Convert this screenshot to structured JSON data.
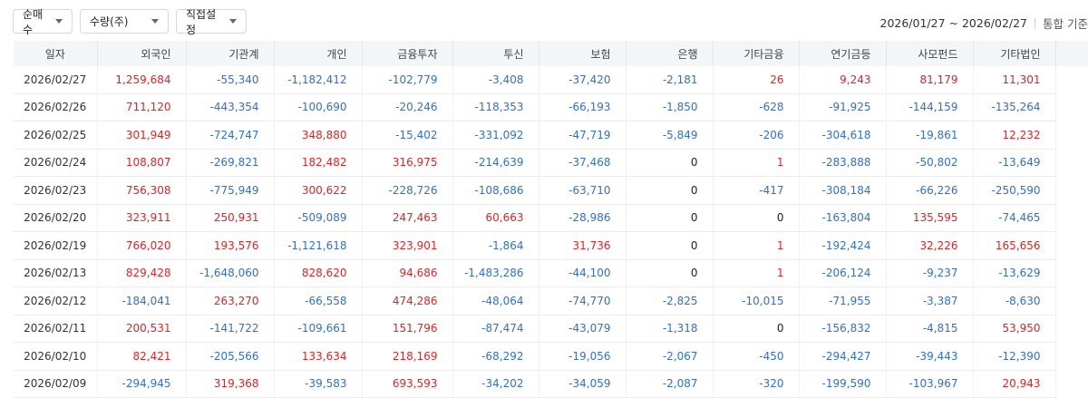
{
  "toolbar": {
    "filters": [
      {
        "label": "순매수"
      },
      {
        "label": "수량(주)"
      },
      {
        "label": "직접설정"
      }
    ],
    "date_range": "2026/01/27 ~ 2026/02/27",
    "basis": "통합 기준"
  },
  "table": {
    "columns": [
      "일자",
      "외국인",
      "기관계",
      "개인",
      "금융투자",
      "투신",
      "보험",
      "은행",
      "기타금융",
      "연기금등",
      "사모펀드",
      "기타법인"
    ],
    "rows": [
      [
        "2026/02/27",
        "1,259,684",
        "-55,340",
        "-1,182,412",
        "-102,779",
        "-3,408",
        "-37,420",
        "-2,181",
        "26",
        "9,243",
        "81,179",
        "11,301"
      ],
      [
        "2026/02/26",
        "711,120",
        "-443,354",
        "-100,690",
        "-20,246",
        "-118,353",
        "-66,193",
        "-1,850",
        "-628",
        "-91,925",
        "-144,159",
        "-135,264"
      ],
      [
        "2026/02/25",
        "301,949",
        "-724,747",
        "348,880",
        "-15,402",
        "-331,092",
        "-47,719",
        "-5,849",
        "-206",
        "-304,618",
        "-19,861",
        "12,232"
      ],
      [
        "2026/02/24",
        "108,807",
        "-269,821",
        "182,482",
        "316,975",
        "-214,639",
        "-37,468",
        "0",
        "1",
        "-283,888",
        "-50,802",
        "-13,649"
      ],
      [
        "2026/02/23",
        "756,308",
        "-775,949",
        "300,622",
        "-228,726",
        "-108,686",
        "-63,710",
        "0",
        "-417",
        "-308,184",
        "-66,226",
        "-250,590"
      ],
      [
        "2026/02/20",
        "323,911",
        "250,931",
        "-509,089",
        "247,463",
        "60,663",
        "-28,986",
        "0",
        "0",
        "-163,804",
        "135,595",
        "-74,465"
      ],
      [
        "2026/02/19",
        "766,020",
        "193,576",
        "-1,121,618",
        "323,901",
        "-1,864",
        "31,736",
        "0",
        "1",
        "-192,424",
        "32,226",
        "165,656"
      ],
      [
        "2026/02/13",
        "829,428",
        "-1,648,060",
        "828,620",
        "94,686",
        "-1,483,286",
        "-44,100",
        "0",
        "1",
        "-206,124",
        "-9,237",
        "-13,629"
      ],
      [
        "2026/02/12",
        "-184,041",
        "263,270",
        "-66,558",
        "474,286",
        "-48,064",
        "-74,770",
        "-2,825",
        "-10,015",
        "-71,955",
        "-3,387",
        "-8,630"
      ],
      [
        "2026/02/11",
        "200,531",
        "-141,722",
        "-109,661",
        "151,796",
        "-87,474",
        "-43,079",
        "-1,318",
        "0",
        "-156,832",
        "-4,815",
        "53,950"
      ],
      [
        "2026/02/10",
        "82,421",
        "-205,566",
        "133,634",
        "218,169",
        "-68,292",
        "-19,056",
        "-2,067",
        "-450",
        "-294,427",
        "-39,443",
        "-12,390"
      ],
      [
        "2026/02/09",
        "-294,945",
        "319,368",
        "-39,583",
        "693,593",
        "-34,202",
        "-34,059",
        "-2,087",
        "-320",
        "-199,590",
        "-103,967",
        "20,943"
      ]
    ]
  },
  "colors": {
    "positive": "#e52222",
    "negative": "#2f6fd6"
  },
  "icons": {
    "dropdown": "caret-down-icon"
  }
}
